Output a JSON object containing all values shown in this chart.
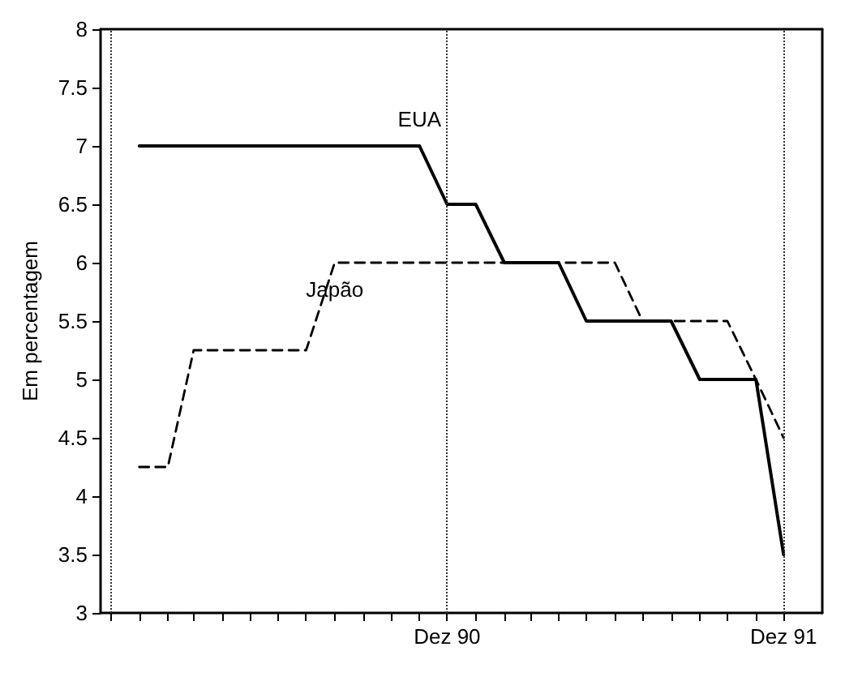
{
  "chart_data": {
    "type": "line",
    "ylabel": "Em percentagem",
    "xlim": [
      "1989-11-20",
      "1992-01-12"
    ],
    "ylim": [
      3,
      8
    ],
    "yticks": [
      3,
      3.5,
      4,
      4.5,
      5,
      5.5,
      6,
      6.5,
      7,
      7.5,
      8
    ],
    "xticks": [
      {
        "value": "1989-12",
        "label": null
      },
      {
        "value": "1990-01",
        "label": null
      },
      {
        "value": "1990-02",
        "label": null
      },
      {
        "value": "1990-03",
        "label": null
      },
      {
        "value": "1990-04",
        "label": null
      },
      {
        "value": "1990-05",
        "label": null
      },
      {
        "value": "1990-06",
        "label": null
      },
      {
        "value": "1990-07",
        "label": null
      },
      {
        "value": "1990-08",
        "label": null
      },
      {
        "value": "1990-09",
        "label": null
      },
      {
        "value": "1990-10",
        "label": null
      },
      {
        "value": "1990-11",
        "label": null
      },
      {
        "value": "1990-12",
        "label": "Dez 90"
      },
      {
        "value": "1991-01",
        "label": null
      },
      {
        "value": "1991-02",
        "label": null
      },
      {
        "value": "1991-03",
        "label": null
      },
      {
        "value": "1991-04",
        "label": null
      },
      {
        "value": "1991-05",
        "label": null
      },
      {
        "value": "1991-06",
        "label": null
      },
      {
        "value": "1991-07",
        "label": null
      },
      {
        "value": "1991-08",
        "label": null
      },
      {
        "value": "1991-09",
        "label": null
      },
      {
        "value": "1991-10",
        "label": null
      },
      {
        "value": "1991-11",
        "label": null
      },
      {
        "value": "1991-12",
        "label": "Dez 91"
      }
    ],
    "series": [
      {
        "name": "EUA",
        "color": "#000000",
        "line_style": "solid",
        "x": [
          "1990-01",
          "1990-11",
          "1990-12",
          "1991-01",
          "1991-02",
          "1991-04",
          "1991-05",
          "1991-08",
          "1991-09",
          "1991-11",
          "1991-12"
        ],
        "values": [
          7,
          7,
          6.5,
          6.5,
          6,
          6,
          5.5,
          5.5,
          5,
          5,
          3.5
        ]
      },
      {
        "name": "Japão",
        "color": "#000000",
        "line_style": "dashed",
        "x": [
          "1990-01",
          "1990-02",
          "1990-03",
          "1990-07",
          "1990-08",
          "1991-06",
          "1991-07",
          "1991-10",
          "1991-11",
          "1991-12"
        ],
        "values": [
          4.25,
          4.25,
          5.25,
          5.25,
          6,
          6,
          5.5,
          5.5,
          5,
          4.5
        ]
      }
    ],
    "ref_lines": [
      {
        "axis": "x",
        "value": "1989-12",
        "line_style": "dotted"
      },
      {
        "axis": "x",
        "value": "1990-12",
        "line_style": "dotted"
      },
      {
        "axis": "x",
        "value": "1991-12",
        "line_style": "dotted"
      }
    ],
    "marker": "none",
    "grid": false,
    "legend": false
  }
}
